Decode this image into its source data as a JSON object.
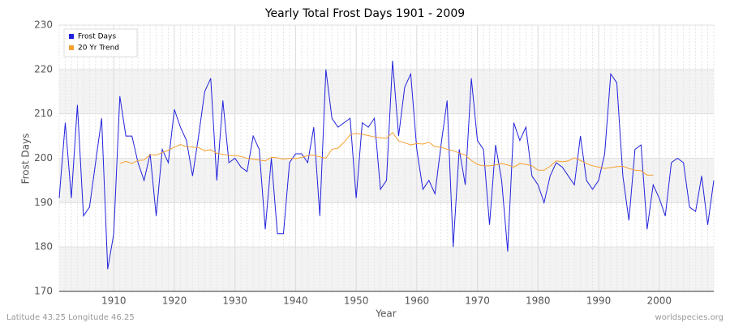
{
  "chart_data": {
    "type": "line",
    "title": "Yearly Total Frost Days 1901 - 2009",
    "x_label": "Year",
    "y_label": "Frost Days",
    "footer_left": "Latitude 43.25 Longitude 46.25",
    "footer_right": "worldspecies.org",
    "x": [
      1901,
      1902,
      1903,
      1904,
      1905,
      1906,
      1907,
      1908,
      1909,
      1910,
      1911,
      1912,
      1913,
      1914,
      1915,
      1916,
      1917,
      1918,
      1919,
      1920,
      1921,
      1922,
      1923,
      1924,
      1925,
      1926,
      1927,
      1928,
      1929,
      1930,
      1931,
      1932,
      1933,
      1934,
      1935,
      1936,
      1937,
      1938,
      1939,
      1940,
      1941,
      1942,
      1943,
      1944,
      1945,
      1946,
      1947,
      1948,
      1949,
      1950,
      1951,
      1952,
      1953,
      1954,
      1955,
      1956,
      1957,
      1958,
      1959,
      1960,
      1961,
      1962,
      1963,
      1964,
      1965,
      1966,
      1967,
      1968,
      1969,
      1970,
      1971,
      1972,
      1973,
      1974,
      1975,
      1976,
      1977,
      1978,
      1979,
      1980,
      1981,
      1982,
      1983,
      1984,
      1985,
      1986,
      1987,
      1988,
      1989,
      1990,
      1991,
      1992,
      1993,
      1994,
      1995,
      1996,
      1997,
      1998,
      1999,
      2000,
      2001,
      2002,
      2003,
      2004,
      2005,
      2006,
      2007,
      2008,
      2009
    ],
    "series": [
      {
        "name": "Frost Days",
        "color": "#2222dd",
        "values": [
          191,
          208,
          191,
          212,
          187,
          189,
          199,
          209,
          175,
          183,
          214,
          205,
          205,
          199,
          195,
          201,
          187,
          202,
          199,
          211,
          207,
          204,
          196,
          205,
          215,
          218,
          195,
          213,
          199,
          200,
          198,
          197,
          205,
          202,
          184,
          200,
          183,
          183,
          199,
          201,
          201,
          199,
          207,
          187,
          220,
          209,
          207,
          208,
          209,
          191,
          208,
          207,
          209,
          193,
          195,
          222,
          205,
          216,
          219,
          202,
          193,
          195,
          192,
          203,
          213,
          180,
          202,
          194,
          218,
          204,
          202,
          185,
          203,
          195,
          179,
          208,
          204,
          207,
          196,
          194,
          190,
          196,
          199,
          198,
          196,
          194,
          205,
          195,
          193,
          195,
          201,
          219,
          217,
          196,
          186,
          202,
          203,
          184,
          194,
          191,
          187,
          199,
          200,
          199,
          189,
          188,
          196,
          185,
          195
        ]
      },
      {
        "name": "20 Yr Trend",
        "color": "#f5a030",
        "values": [
          null,
          null,
          null,
          null,
          null,
          null,
          null,
          null,
          null,
          null,
          198.8,
          199.3,
          198.8,
          199.5,
          199.6,
          200.8,
          200.7,
          201.3,
          201.8,
          202.5,
          203.1,
          202.6,
          202.5,
          202.4,
          201.7,
          201.9,
          201.1,
          200.9,
          200.6,
          200.6,
          200.4,
          200.0,
          199.8,
          199.6,
          199.4,
          200.2,
          200.1,
          199.8,
          200.0,
          199.9,
          200.2,
          200.6,
          200.7,
          200.3,
          200.0,
          202.0,
          202.3,
          203.6,
          205.3,
          205.6,
          205.4,
          205.1,
          204.8,
          204.6,
          204.5,
          205.8,
          203.9,
          203.5,
          203.0,
          203.3,
          203.2,
          203.6,
          202.6,
          202.5,
          202.0,
          201.7,
          201.2,
          200.7,
          199.5,
          198.6,
          198.3,
          198.3,
          198.5,
          198.8,
          198.5,
          198.0,
          198.8,
          198.6,
          198.3,
          197.3,
          197.3,
          198.2,
          199.4,
          199.2,
          199.4,
          200.1,
          199.5,
          198.8,
          198.3,
          198.0,
          197.7,
          197.9,
          198.1,
          198.2,
          197.7,
          197.3,
          197.2,
          196.2,
          196.2,
          null,
          null,
          null,
          null,
          null,
          null,
          null,
          null,
          null,
          null
        ]
      }
    ],
    "xlim": [
      1901,
      2009
    ],
    "xticks": [
      1910,
      1920,
      1930,
      1940,
      1950,
      1960,
      1970,
      1980,
      1990,
      2000
    ],
    "ylim": [
      170,
      230
    ],
    "yticks": [
      170,
      180,
      190,
      200,
      210,
      220,
      230
    ],
    "grid": true,
    "legend": "top-left"
  }
}
